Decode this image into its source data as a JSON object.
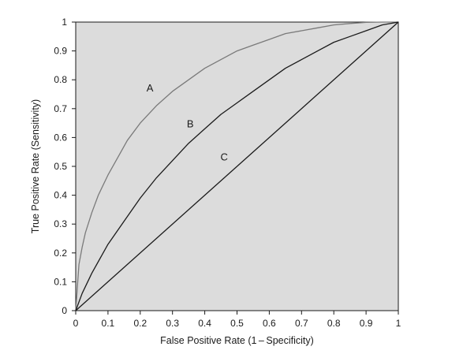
{
  "chart_data": {
    "type": "line",
    "title": "",
    "xlabel": "False Positive Rate (1 – Specificity)",
    "ylabel": "True Positive Rate (Sensitivity)",
    "xlim": [
      0,
      1
    ],
    "ylim": [
      0,
      1
    ],
    "xticks": [
      "0",
      "0.1",
      "0.2",
      "0.3",
      "0.4",
      "0.5",
      "0.6",
      "0.7",
      "0.8",
      "0.9",
      "1"
    ],
    "yticks": [
      "0",
      "0.1",
      "0.2",
      "0.3",
      "0.4",
      "0.5",
      "0.6",
      "0.7",
      "0.8",
      "0.9",
      "1"
    ],
    "grid": false,
    "plot_background": "#dcdcdc",
    "series": [
      {
        "name": "A",
        "color": "#7a7a7a",
        "x": [
          0,
          0.01,
          0.02,
          0.03,
          0.05,
          0.07,
          0.1,
          0.13,
          0.16,
          0.2,
          0.25,
          0.3,
          0.35,
          0.4,
          0.45,
          0.5,
          0.55,
          0.6,
          0.65,
          0.7,
          0.75,
          0.8,
          0.85,
          0.9,
          0.95,
          1
        ],
        "y": [
          0,
          0.16,
          0.22,
          0.27,
          0.34,
          0.4,
          0.47,
          0.53,
          0.59,
          0.65,
          0.71,
          0.76,
          0.8,
          0.84,
          0.87,
          0.9,
          0.92,
          0.94,
          0.96,
          0.97,
          0.98,
          0.99,
          0.995,
          0.999,
          1.0,
          1.0
        ]
      },
      {
        "name": "B",
        "color": "#1a1a1a",
        "x": [
          0,
          0.02,
          0.05,
          0.1,
          0.15,
          0.2,
          0.25,
          0.3,
          0.35,
          0.4,
          0.45,
          0.5,
          0.55,
          0.6,
          0.65,
          0.7,
          0.75,
          0.8,
          0.85,
          0.9,
          0.95,
          1
        ],
        "y": [
          0,
          0.06,
          0.13,
          0.23,
          0.31,
          0.39,
          0.46,
          0.52,
          0.58,
          0.63,
          0.68,
          0.72,
          0.76,
          0.8,
          0.84,
          0.87,
          0.9,
          0.93,
          0.95,
          0.97,
          0.99,
          1.0
        ]
      },
      {
        "name": "C",
        "color": "#1a1a1a",
        "x": [
          0,
          1
        ],
        "y": [
          0,
          1
        ]
      }
    ],
    "annotations": [
      {
        "text": "A",
        "x": 0.23,
        "y": 0.76
      },
      {
        "text": "B",
        "x": 0.355,
        "y": 0.635
      },
      {
        "text": "C",
        "x": 0.46,
        "y": 0.52
      }
    ]
  }
}
